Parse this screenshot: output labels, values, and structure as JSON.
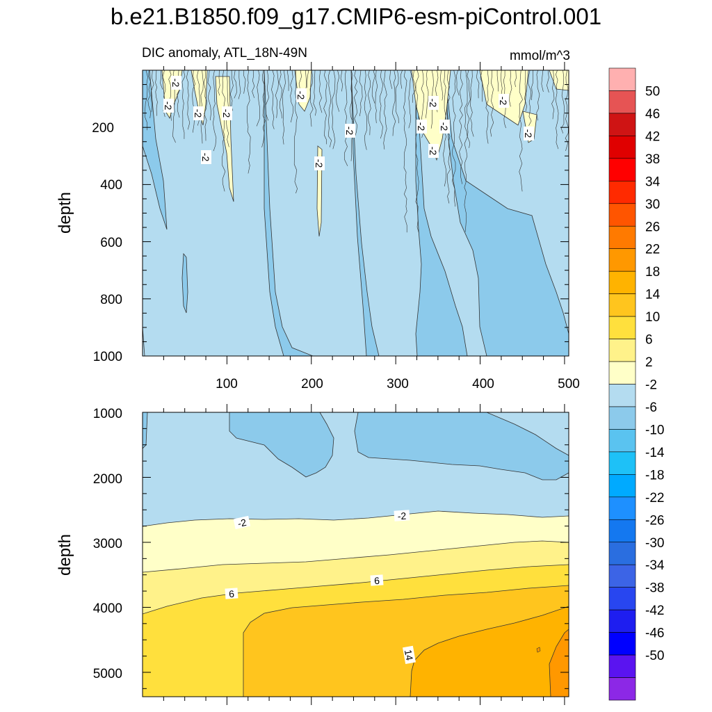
{
  "chart_data": {
    "type": "contour",
    "title": "b.e21.B1850.f09_g17.CMIP6-esm-piControl.001",
    "subtitle_left": "DIC anomaly, ATL_18N-49N",
    "subtitle_right": "mmol/m^3",
    "panels": [
      {
        "name": "upper",
        "ylabel": "depth",
        "xlabel": "",
        "xlim": [
          0,
          505
        ],
        "ylim": [
          1000,
          0
        ],
        "x_ticks": [
          "100",
          "200",
          "300",
          "400",
          "500"
        ],
        "x_tick_values": [
          100,
          200,
          300,
          400,
          500
        ],
        "y_ticks": [
          "200",
          "400",
          "600",
          "800",
          "1000"
        ],
        "y_tick_values": [
          200,
          400,
          600,
          800,
          1000
        ],
        "contour_labels": [
          "-2",
          "-2",
          "-2",
          "-2",
          "-2",
          "-2",
          "-2",
          "-2",
          "-2",
          "-2",
          "-2",
          "-2",
          "-2",
          "-2"
        ]
      },
      {
        "name": "lower",
        "ylabel": "depth",
        "xlabel": "",
        "xlim": [
          0,
          505
        ],
        "ylim": [
          5375,
          1000
        ],
        "y_ticks": [
          "1000",
          "2000",
          "3000",
          "4000",
          "5000"
        ],
        "y_tick_values": [
          1000,
          2000,
          3000,
          4000,
          5000
        ],
        "contour_labels": [
          "-2",
          "-2",
          "6",
          "6",
          "14"
        ]
      }
    ],
    "colorbar": {
      "levels": [
        "50",
        "46",
        "42",
        "38",
        "34",
        "30",
        "26",
        "22",
        "18",
        "14",
        "10",
        "6",
        "2",
        "-2",
        "-6",
        "-10",
        "-14",
        "-18",
        "-22",
        "-26",
        "-30",
        "-34",
        "-38",
        "-42",
        "-46",
        "-50"
      ],
      "colors": [
        "#ffb0b0",
        "#e65454",
        "#cf1414",
        "#e00000",
        "#ff0000",
        "#ff2a00",
        "#ff5500",
        "#ff7a00",
        "#ff9800",
        "#ffb300",
        "#ffc51e",
        "#ffe03d",
        "#fff28a",
        "#ffffc8",
        "#b4dcf0",
        "#8ccaeb",
        "#5ac3f0",
        "#1ec1f7",
        "#00aaff",
        "#1e90ff",
        "#1478f0",
        "#2a6ee0",
        "#3c64e6",
        "#2846f0",
        "#1e1ef0",
        "#0000ff",
        "#5a14f0",
        "#8c28e6"
      ]
    }
  }
}
